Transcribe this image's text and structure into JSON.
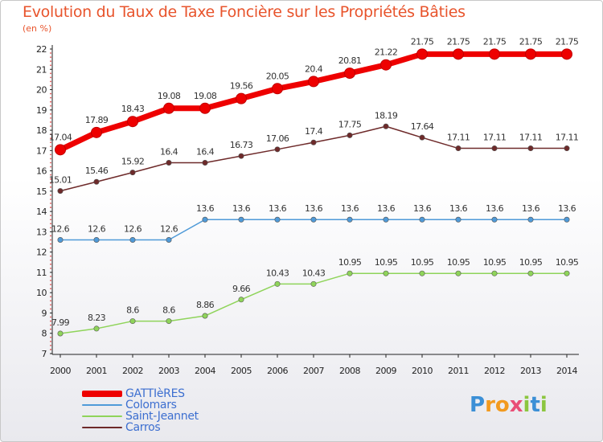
{
  "chart_data": {
    "type": "line",
    "title": "Evolution du Taux de Taxe Foncière sur les Propriétés Bâties",
    "subtitle": "(en %)",
    "x": [
      "2000",
      "2001",
      "2002",
      "2003",
      "2004",
      "2005",
      "2006",
      "2007",
      "2008",
      "2009",
      "2010",
      "2011",
      "2012",
      "2013",
      "2014"
    ],
    "ylim": [
      7,
      22
    ],
    "yticks": [
      "7",
      "8",
      "9",
      "10",
      "11",
      "12",
      "13",
      "14",
      "15",
      "16",
      "17",
      "18",
      "19",
      "20",
      "21",
      "22"
    ],
    "grid": false,
    "legend_position": "bottom-left",
    "series": [
      {
        "name": "GATTIèRES",
        "color": "#ee0000",
        "values": [
          17.04,
          17.89,
          18.43,
          19.08,
          19.08,
          19.56,
          20.05,
          20.4,
          20.81,
          21.22,
          21.75,
          21.75,
          21.75,
          21.75,
          21.75
        ],
        "labels": [
          "17.04",
          "17.89",
          "18.43",
          "19.08",
          "19.08",
          "19.56",
          "20.05",
          "20.4",
          "20.81",
          "21.22",
          "21.75",
          "21.75",
          "21.75",
          "21.75",
          "21.75"
        ]
      },
      {
        "name": "Colomars",
        "color": "#4f9ad8",
        "values": [
          12.6,
          12.6,
          12.6,
          12.6,
          13.6,
          13.6,
          13.6,
          13.6,
          13.6,
          13.6,
          13.6,
          13.6,
          13.6,
          13.6,
          13.6
        ],
        "labels": [
          "12.6",
          "12.6",
          "12.6",
          "12.6",
          "13.6",
          "13.6",
          "13.6",
          "13.6",
          "13.6",
          "13.6",
          "13.6",
          "13.6",
          "13.6",
          "13.6",
          "13.6"
        ]
      },
      {
        "name": "Saint-Jeannet",
        "color": "#8fd45a",
        "values": [
          7.99,
          8.23,
          8.6,
          8.6,
          8.86,
          9.66,
          10.43,
          10.43,
          10.95,
          10.95,
          10.95,
          10.95,
          10.95,
          10.95,
          10.95
        ],
        "labels": [
          "7.99",
          "8.23",
          "8.6",
          "8.6",
          "8.86",
          "9.66",
          "10.43",
          "10.43",
          "10.95",
          "10.95",
          "10.95",
          "10.95",
          "10.95",
          "10.95",
          "10.95"
        ]
      },
      {
        "name": "Carros",
        "color": "#6e2a2a",
        "values": [
          15.01,
          15.46,
          15.92,
          16.4,
          16.4,
          16.73,
          17.06,
          17.4,
          17.75,
          18.19,
          17.64,
          17.11,
          17.11,
          17.11,
          17.11
        ],
        "labels": [
          "15.01",
          "15.46",
          "15.92",
          "16.4",
          "16.4",
          "16.73",
          "17.06",
          "17.4",
          "17.75",
          "18.19",
          "17.64",
          "17.11",
          "17.11",
          "17.11",
          "17.11"
        ]
      }
    ]
  },
  "logo": {
    "letters": [
      "P",
      "r",
      "o",
      "x",
      "i",
      "t",
      "i"
    ],
    "colors": [
      "#3b8fd6",
      "#f29a1f",
      "#f29a1f",
      "#e94e77",
      "#8cc63f",
      "#3b8fd6",
      "#8cc63f"
    ]
  }
}
